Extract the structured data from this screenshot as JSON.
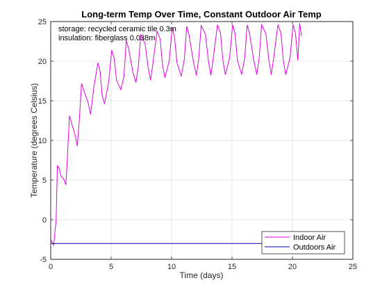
{
  "chart_data": {
    "type": "line",
    "title": "Long-term Temp Over Time, Constant Outdoor Air Temp",
    "xlabel": "Time (days)",
    "ylabel": "Temperature (degrees Celsius)",
    "xlim": [
      0,
      25
    ],
    "ylim": [
      -5,
      25
    ],
    "xticks": [
      "0",
      "5",
      "10",
      "15",
      "20",
      "25"
    ],
    "yticks": [
      "-5",
      "0",
      "5",
      "10",
      "15",
      "20",
      "25"
    ],
    "grid": true,
    "legend_position": "bottom-right",
    "annotations": [
      "storage: recycled ceramic tile 0.3m",
      "insulation: fiberglass 0.038m"
    ],
    "series": [
      {
        "name": "Indoor Air",
        "color": "#e100e1",
        "x": [
          0.0,
          0.25,
          0.45,
          0.55,
          0.7,
          0.85,
          1.05,
          1.25,
          1.35,
          1.55,
          1.8,
          2.05,
          2.2,
          2.35,
          2.55,
          2.85,
          3.1,
          3.3,
          3.55,
          3.9,
          4.1,
          4.25,
          4.45,
          4.8,
          5.05,
          5.25,
          5.45,
          5.8,
          6.05,
          6.25,
          6.45,
          6.8,
          7.05,
          7.25,
          7.45,
          7.8,
          8.05,
          8.25,
          8.45,
          8.8,
          9.05,
          9.25,
          9.45,
          9.8,
          10.05,
          10.25,
          10.45,
          10.8,
          11.05,
          11.25,
          11.45,
          11.8,
          12.05,
          12.25,
          12.45,
          12.8,
          13.05,
          13.25,
          13.45,
          13.8,
          14.05,
          14.25,
          14.45,
          14.8,
          15.05,
          15.25,
          15.45,
          15.8,
          16.05,
          16.25,
          16.45,
          16.8,
          17.05,
          17.25,
          17.45,
          17.8,
          18.05,
          18.25,
          18.45,
          18.8,
          19.05,
          19.25,
          19.45,
          19.8,
          20.05,
          20.25,
          20.45,
          20.6,
          20.75
        ],
        "y": [
          -2.5,
          -3.2,
          0.0,
          6.8,
          6.5,
          5.5,
          5.2,
          4.4,
          7.0,
          13.1,
          11.8,
          10.5,
          9.3,
          12.2,
          17.2,
          15.8,
          14.8,
          13.3,
          16.5,
          19.8,
          18.6,
          15.8,
          14.6,
          17.4,
          21.4,
          20.4,
          17.6,
          16.4,
          18.0,
          22.6,
          21.6,
          18.6,
          17.3,
          19.3,
          23.3,
          22.3,
          19.3,
          17.6,
          19.6,
          23.8,
          22.8,
          19.6,
          17.9,
          20.0,
          24.2,
          23.0,
          19.8,
          18.1,
          20.2,
          24.4,
          23.3,
          20.0,
          18.2,
          20.3,
          24.5,
          23.4,
          20.0,
          18.2,
          20.4,
          24.6,
          23.5,
          20.1,
          18.3,
          20.4,
          24.6,
          23.5,
          20.1,
          18.3,
          20.4,
          24.6,
          23.5,
          20.1,
          18.3,
          20.4,
          24.6,
          23.5,
          20.1,
          18.3,
          20.4,
          24.6,
          23.5,
          20.1,
          18.3,
          20.4,
          24.6,
          23.5,
          20.1,
          24.8,
          23.2
        ]
      },
      {
        "name": "Outdoors Air",
        "color": "#0000a0",
        "x": [
          0,
          20.75
        ],
        "y": [
          -3,
          -3
        ]
      }
    ]
  }
}
